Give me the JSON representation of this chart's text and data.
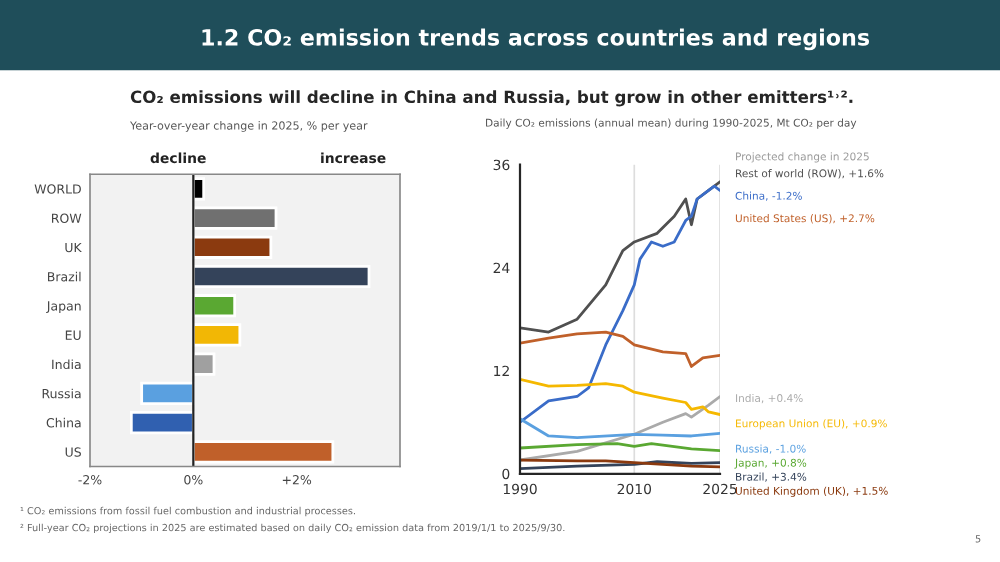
{
  "chart_data": [
    {
      "type": "bar",
      "orientation": "horizontal",
      "title": "1.2 CO₂ emission trends across countries and regions",
      "subtitle": "CO₂ emissions will decline in China and Russia, but grow in other emitters¹˒².",
      "xlabel": "Year-over-year change in 2025, % per year",
      "categories": [
        "WORLD",
        "ROW",
        "UK",
        "Brazil",
        "Japan",
        "EU",
        "India",
        "Russia",
        "China",
        "US"
      ],
      "values": [
        0.2,
        1.6,
        1.5,
        3.4,
        0.8,
        0.9,
        0.4,
        -1.0,
        -1.2,
        2.7
      ],
      "colors": [
        "#000000",
        "#707070",
        "#8b3a0f",
        "#34435a",
        "#5aa832",
        "#f2b705",
        "#a0a0a0",
        "#5aa0e0",
        "#3060b0",
        "#c0602a"
      ],
      "xlim": [
        -2,
        4
      ],
      "xticks": [
        {
          "value": -2,
          "label": "-2%"
        },
        {
          "value": 0,
          "label": "0%"
        },
        {
          "value": 2,
          "label": "+2%"
        }
      ],
      "annotations": [
        "decline",
        "increase",
        "¹ CO₂ emissions from fossil fuel combustion and industrial processes.",
        "² Full-year CO₂ projections in 2025 are estimated based on daily CO₂ emission data from 2019/1/1 to 2025/9/30.",
        "5"
      ]
    },
    {
      "type": "line",
      "subtitle": "Daily CO₂ emissions (annual mean) during 1990-2025, Mt CO₂ per day",
      "legend": false,
      "marker": "none",
      "xlim": [
        1990,
        2025
      ],
      "xticks": [
        1990,
        2010,
        2025
      ],
      "ylim": [
        0,
        36
      ],
      "yticks": [
        0,
        12,
        24,
        36
      ],
      "annotations": [
        "Projected change in 2025"
      ],
      "series": [
        {
          "name": "Rest of world (ROW), +1.6%",
          "color": "#505050",
          "x": [
            1990,
            1995,
            2000,
            2005,
            2008,
            2010,
            2014,
            2017,
            2019,
            2020,
            2021,
            2023,
            2025
          ],
          "values": [
            17,
            16.5,
            18,
            22,
            26,
            27,
            28,
            30,
            32,
            29,
            32,
            33,
            34
          ]
        },
        {
          "name": "China, -1.2%",
          "color": "#3a6cc8",
          "x": [
            1990,
            1995,
            2000,
            2002,
            2005,
            2008,
            2010,
            2011,
            2013,
            2015,
            2017,
            2019,
            2020,
            2021,
            2023,
            2024,
            2025
          ],
          "values": [
            6,
            8.5,
            9,
            10,
            15,
            19,
            22,
            25,
            27,
            26.5,
            27,
            29.5,
            30,
            32,
            33,
            33.5,
            33
          ]
        },
        {
          "name": "United States (US), +2.7%",
          "color": "#c0602a",
          "x": [
            1990,
            1995,
            2000,
            2005,
            2008,
            2010,
            2015,
            2019,
            2020,
            2022,
            2025
          ],
          "values": [
            15.2,
            15.8,
            16.3,
            16.5,
            16,
            15,
            14.2,
            14,
            12.5,
            13.5,
            13.8
          ]
        },
        {
          "name": "India, +0.4%",
          "color": "#aaaaaa",
          "x": [
            1990,
            2000,
            2010,
            2015,
            2019,
            2020,
            2023,
            2025
          ],
          "values": [
            1.6,
            2.6,
            4.6,
            6,
            7,
            6.6,
            8,
            9
          ]
        },
        {
          "name": "European Union (EU), +0.9%",
          "color": "#f5b800",
          "x": [
            1990,
            1995,
            2000,
            2005,
            2008,
            2010,
            2015,
            2019,
            2020,
            2022,
            2023,
            2025
          ],
          "values": [
            11,
            10.2,
            10.3,
            10.5,
            10.2,
            9.5,
            8.8,
            8.3,
            7.5,
            7.8,
            7.2,
            6.9
          ]
        },
        {
          "name": "Russia, -1.0%",
          "color": "#5aa0e0",
          "x": [
            1990,
            1995,
            2000,
            2010,
            2015,
            2020,
            2025
          ],
          "values": [
            6.4,
            4.4,
            4.2,
            4.6,
            4.5,
            4.4,
            4.7
          ]
        },
        {
          "name": "Japan, +0.8%",
          "color": "#5aa832",
          "x": [
            1990,
            2000,
            2007,
            2010,
            2013,
            2020,
            2025
          ],
          "values": [
            3.0,
            3.4,
            3.5,
            3.2,
            3.5,
            2.9,
            2.7
          ]
        },
        {
          "name": "Brazil, +3.4%",
          "color": "#34435a",
          "x": [
            1990,
            2000,
            2010,
            2014,
            2020,
            2025
          ],
          "values": [
            0.6,
            0.9,
            1.1,
            1.4,
            1.2,
            1.3
          ]
        },
        {
          "name": "United Kingdom (UK), +1.5%",
          "color": "#8b3a0f",
          "x": [
            1990,
            2000,
            2005,
            2010,
            2015,
            2020,
            2025
          ],
          "values": [
            1.6,
            1.5,
            1.5,
            1.3,
            1.1,
            0.9,
            0.8
          ]
        }
      ]
    }
  ]
}
